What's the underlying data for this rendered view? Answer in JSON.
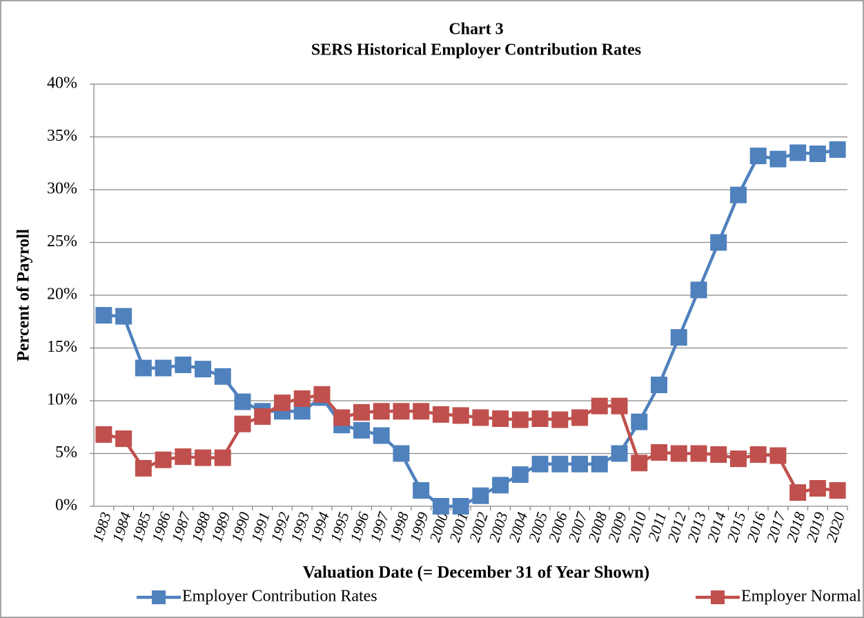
{
  "chart_data": {
    "type": "line",
    "title": "Chart 3",
    "subtitle": "SERS Historical Employer Contribution Rates",
    "y_label": "Percent of Payroll",
    "x_label": "Valuation Date (= December 31 of Year Shown)",
    "categories": [
      "1983",
      "1984",
      "1985",
      "1986",
      "1987",
      "1988",
      "1989",
      "1990",
      "1991",
      "1992",
      "1993",
      "1994",
      "1995",
      "1996",
      "1997",
      "1998",
      "1999",
      "2000",
      "2001",
      "2002",
      "2003",
      "2004",
      "2005",
      "2006",
      "2007",
      "2008",
      "2009",
      "2010",
      "2011",
      "2012",
      "2013",
      "2014",
      "2015",
      "2016",
      "2017",
      "2018",
      "2019",
      "2020"
    ],
    "series": [
      {
        "name": "Employer Contribution Rates",
        "color": "#4f81bd",
        "values": [
          18.1,
          18.0,
          13.1,
          13.1,
          13.4,
          13.0,
          12.3,
          9.9,
          9.0,
          9.0,
          9.0,
          10.3,
          7.7,
          7.2,
          6.7,
          5.0,
          1.5,
          0,
          0,
          1.0,
          2.0,
          3.0,
          4.0,
          4.0,
          4.0,
          4.0,
          5.0,
          8.0,
          11.5,
          16.0,
          20.5,
          25.0,
          29.5,
          33.2,
          32.9,
          33.5,
          33.4,
          33.8
        ]
      },
      {
        "name": "Employer Normal Cost Rates",
        "color": "#c0504d",
        "values": [
          6.8,
          6.4,
          3.6,
          4.4,
          4.7,
          4.6,
          4.6,
          7.8,
          8.5,
          9.8,
          10.2,
          10.6,
          8.4,
          8.9,
          9.0,
          9.0,
          9.0,
          8.7,
          8.6,
          8.4,
          8.3,
          8.2,
          8.3,
          8.2,
          8.4,
          9.5,
          9.5,
          4.1,
          5.1,
          5.0,
          5.0,
          4.9,
          4.5,
          4.9,
          4.8,
          1.3,
          1.7,
          1.5
        ]
      }
    ],
    "ylim": [
      0,
      40
    ],
    "yticks": [
      {
        "value": 0,
        "label": "0%"
      },
      {
        "value": 5,
        "label": "5%"
      },
      {
        "value": 10,
        "label": "10%"
      },
      {
        "value": 15,
        "label": "15%"
      },
      {
        "value": 20,
        "label": "20%"
      },
      {
        "value": 25,
        "label": "25%"
      },
      {
        "value": 30,
        "label": "30%"
      },
      {
        "value": 35,
        "label": "35%"
      },
      {
        "value": 40,
        "label": "40%"
      }
    ],
    "grid": true,
    "legend": "bottom"
  }
}
